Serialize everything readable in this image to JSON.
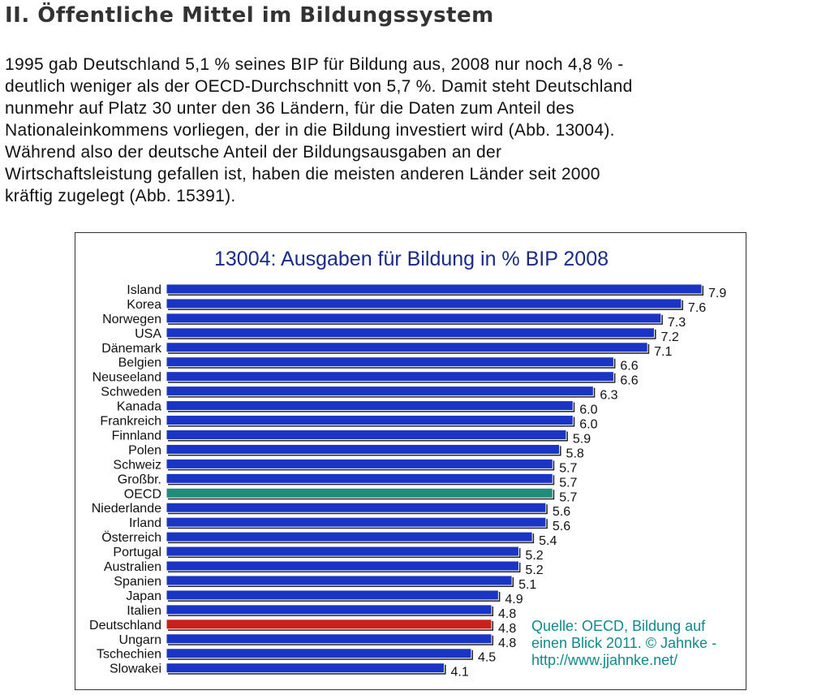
{
  "heading": "II. Öffentliche Mittel im Bildungssystem",
  "paragraph_lines": [
    "1995 gab Deutschland 5,1 % seines BIP für Bildung aus, 2008 nur noch 4,8 % -",
    "deutlich weniger als der OECD-Durchschnitt von 5,7 %. Damit steht Deutschland",
    "nunmehr auf Platz 30 unter den 36 Ländern, für die Daten zum Anteil des",
    "Nationaleinkommens vorliegen, der in die Bildung investiert wird (Abb. 13004).",
    "Während also der deutsche Anteil der Bildungsausgaben an der",
    "Wirtschaftsleistung gefallen ist, haben die meisten anderen Länder seit 2000",
    "kräftig zugelegt (Abb. 15391)."
  ],
  "source_lines": [
    "Quelle: OECD, Bildung auf",
    "einen Blick 2011. © Jahnke -",
    "http://www.jjahnke.net/"
  ],
  "chart_data": {
    "type": "bar",
    "orientation": "horizontal",
    "title": "13004: Ausgaben für Bildung in % BIP 2008",
    "categories": [
      "Island",
      "Korea",
      "Norwegen",
      "USA",
      "Dänemark",
      "Belgien",
      "Neuseeland",
      "Schweden",
      "Kanada",
      "Frankreich",
      "Finnland",
      "Polen",
      "Schweiz",
      "Großbr.",
      "OECD",
      "Niederlande",
      "Irland",
      "Österreich",
      "Portugal",
      "Australien",
      "Spanien",
      "Japan",
      "Italien",
      "Deutschland",
      "Ungarn",
      "Tschechien",
      "Slowakei"
    ],
    "values": [
      7.9,
      7.6,
      7.3,
      7.2,
      7.1,
      6.6,
      6.6,
      6.3,
      6.0,
      6.0,
      5.9,
      5.8,
      5.7,
      5.7,
      5.7,
      5.6,
      5.6,
      5.4,
      5.2,
      5.2,
      5.1,
      4.9,
      4.8,
      4.8,
      4.8,
      4.5,
      4.1
    ],
    "value_labels": [
      "7.9",
      "7.6",
      "7.3",
      "7.2",
      "7.1",
      "6.6",
      "6.6",
      "6.3",
      "6.0",
      "6.0",
      "5.9",
      "5.8",
      "5.7",
      "5.7",
      "5.7",
      "5.6",
      "5.6",
      "5.4",
      "5.2",
      "5.2",
      "5.1",
      "4.9",
      "4.8",
      "4.8",
      "4.8",
      "4.5",
      "4.1"
    ],
    "colors": {
      "default": "#1a35c4",
      "highlight": {
        "OECD": "#1f8c7a",
        "Deutschland": "#c8201a"
      },
      "title": "#1a2a8a",
      "source": "#0f8a8a"
    },
    "xlim": [
      0,
      8
    ],
    "grid": false,
    "legend": "none"
  }
}
